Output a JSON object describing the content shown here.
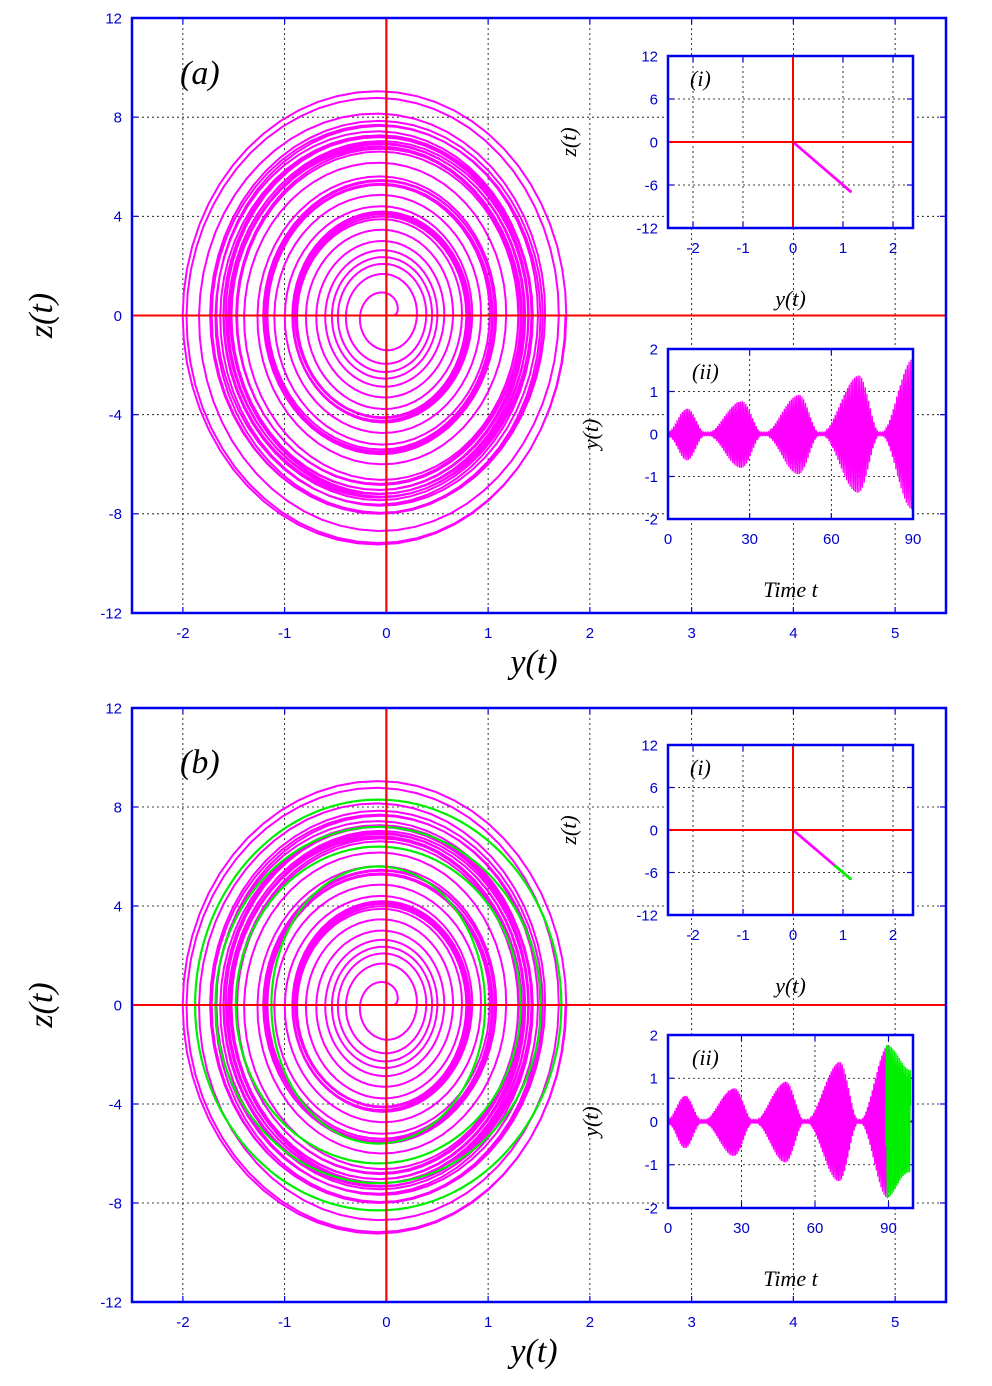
{
  "chart_data": [
    {
      "id": "a",
      "type": "line",
      "panel_label": "(a)",
      "xlabel": "y(t)",
      "ylabel": "z(t)",
      "xlim": [
        -2.5,
        5.5
      ],
      "ylim": [
        -12,
        12
      ],
      "xticks": [
        -2,
        -1,
        0,
        1,
        2,
        3,
        4,
        5
      ],
      "yticks": [
        -12,
        -8,
        -4,
        0,
        4,
        8,
        12
      ],
      "grid": true,
      "series": [
        {
          "color": "#ff00ff",
          "kind": "spiral",
          "y_amp_max": 1.8,
          "z_amp_max": 8.5,
          "z_min": -8.7
        }
      ],
      "insets": [
        {
          "id": "a-i",
          "type": "scatter",
          "panel_label": "(i)",
          "xlabel": "y(t)",
          "ylabel": "z(t)",
          "xlim": [
            -2.5,
            2.4
          ],
          "ylim": [
            -12,
            12
          ],
          "xticks": [
            -2,
            -1,
            0,
            1,
            2
          ],
          "yticks": [
            -12,
            -6,
            0,
            6,
            12
          ],
          "series": [
            {
              "color": "#ff00ff",
              "x": [
                0.0,
                0.2,
                0.4,
                0.6,
                0.8,
                1.0,
                1.15
              ],
              "y": [
                0.0,
                -1.2,
                -2.4,
                -3.6,
                -4.8,
                -6.0,
                -6.9
              ]
            }
          ]
        },
        {
          "id": "a-ii",
          "type": "line",
          "panel_label": "(ii)",
          "xlabel": "Time t",
          "ylabel": "y(t)",
          "xlim": [
            0,
            90
          ],
          "ylim": [
            -2,
            2
          ],
          "xticks": [
            0,
            30,
            60,
            90
          ],
          "yticks": [
            -2,
            -1,
            0,
            1,
            2
          ],
          "series": [
            {
              "color": "#ff00ff",
              "t_start": 0,
              "t_end": 90,
              "envelope_peaks": [
                [
                  0,
                  0.05
                ],
                [
                  7,
                  0.62
                ],
                [
                  14,
                  0.0
                ],
                [
                  27,
                  0.8
                ],
                [
                  35,
                  0.0
                ],
                [
                  48,
                  0.95
                ],
                [
                  56,
                  0.0
                ],
                [
                  70,
                  1.4
                ],
                [
                  78,
                  0.0
                ],
                [
                  90,
                  1.8
                ]
              ]
            }
          ]
        }
      ]
    },
    {
      "id": "b",
      "type": "line",
      "panel_label": "(b)",
      "xlabel": "y(t)",
      "ylabel": "z(t)",
      "xlim": [
        -2.5,
        5.5
      ],
      "ylim": [
        -12,
        12
      ],
      "xticks": [
        -2,
        -1,
        0,
        1,
        2,
        3,
        4,
        5
      ],
      "yticks": [
        -12,
        -8,
        -4,
        0,
        4,
        8,
        12
      ],
      "grid": true,
      "series": [
        {
          "color": "#ff00ff",
          "kind": "spiral",
          "y_amp_max": 1.8,
          "z_amp_max": 8.5,
          "z_min": -8.7
        },
        {
          "color": "#00ee00",
          "kind": "loops",
          "y_amps": [
            1.05,
            1.4,
            1.6,
            1.8
          ],
          "z_amps": [
            5.6,
            6.4,
            7.2,
            8.3
          ]
        }
      ],
      "insets": [
        {
          "id": "b-i",
          "type": "scatter",
          "panel_label": "(i)",
          "xlabel": "y(t)",
          "ylabel": "z(t)",
          "xlim": [
            -2.5,
            2.4
          ],
          "ylim": [
            -12,
            12
          ],
          "xticks": [
            -2,
            -1,
            0,
            1,
            2
          ],
          "yticks": [
            -12,
            -6,
            0,
            6,
            12
          ],
          "series": [
            {
              "color": "#ff00ff",
              "x": [
                0.0,
                0.2,
                0.4,
                0.6,
                0.8,
                1.0
              ],
              "y": [
                0.0,
                -1.2,
                -2.4,
                -3.6,
                -4.8,
                -6.0
              ]
            },
            {
              "color": "#00ee00",
              "x": [
                0.85,
                1.0,
                1.15
              ],
              "y": [
                -5.1,
                -6.0,
                -6.9
              ]
            }
          ]
        },
        {
          "id": "b-ii",
          "type": "line",
          "panel_label": "(ii)",
          "xlabel": "Time t",
          "ylabel": "y(t)",
          "xlim": [
            0,
            100
          ],
          "ylim": [
            -2,
            2
          ],
          "xticks": [
            0,
            30,
            60,
            90
          ],
          "yticks": [
            -2,
            -1,
            0,
            1,
            2
          ],
          "series": [
            {
              "color": "#ff00ff",
              "t_start": 0,
              "t_end": 90,
              "envelope_peaks": [
                [
                  0,
                  0.05
                ],
                [
                  7,
                  0.62
                ],
                [
                  14,
                  0.0
                ],
                [
                  27,
                  0.8
                ],
                [
                  35,
                  0.0
                ],
                [
                  48,
                  0.95
                ],
                [
                  56,
                  0.0
                ],
                [
                  70,
                  1.4
                ],
                [
                  78,
                  0.0
                ],
                [
                  90,
                  1.8
                ]
              ]
            },
            {
              "color": "#00ee00",
              "t_start": 89,
              "t_end": 99,
              "envelope_peaks": [
                [
                  89,
                  1.8
                ],
                [
                  99,
                  1.2
                ]
              ]
            }
          ]
        }
      ]
    }
  ]
}
